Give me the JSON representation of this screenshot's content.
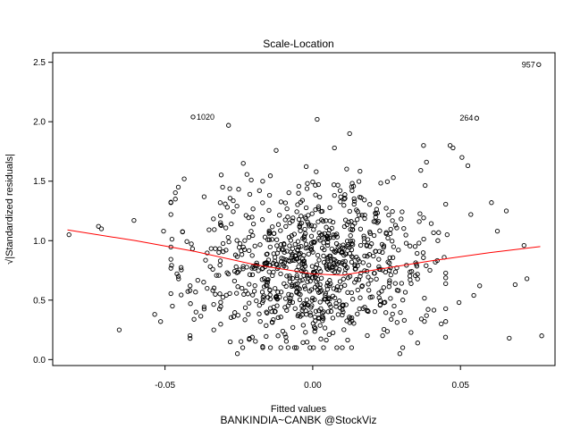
{
  "chart_data": {
    "type": "scatter",
    "title": "Scale-Location",
    "xlabel": "Fitted values",
    "ylabel": "√|Standardized residuals|",
    "caption": "BANKINDIA~CANBK @StockViz",
    "xlim": [
      -0.088,
      0.082
    ],
    "ylim": [
      -0.05,
      2.58
    ],
    "x_ticks": [
      -0.05,
      0.0,
      0.05
    ],
    "x_tick_labels": [
      "-0.05",
      "0.00",
      "0.05"
    ],
    "y_ticks": [
      0.0,
      0.5,
      1.0,
      1.5,
      2.0,
      2.5
    ],
    "y_tick_labels": [
      "0.0",
      "0.5",
      "1.0",
      "1.5",
      "2.0",
      "2.5"
    ],
    "grid": false,
    "legend": "none",
    "point_color": "#000000",
    "smooth_color": "#ff0000",
    "labeled_points": [
      {
        "label": "957",
        "x": 0.0765,
        "y": 2.48
      },
      {
        "label": "1020",
        "x": -0.0405,
        "y": 2.04
      },
      {
        "label": "264",
        "x": 0.0555,
        "y": 2.03
      }
    ],
    "smooth_line": {
      "x": [
        -0.083,
        -0.06,
        -0.04,
        -0.02,
        0.0,
        0.01,
        0.02,
        0.04,
        0.06,
        0.077
      ],
      "y": [
        1.09,
        1.0,
        0.91,
        0.8,
        0.72,
        0.71,
        0.75,
        0.83,
        0.9,
        0.95
      ]
    },
    "outer_points": [
      {
        "x": -0.0825,
        "y": 1.05
      },
      {
        "x": -0.0725,
        "y": 1.12
      },
      {
        "x": -0.0715,
        "y": 1.1
      },
      {
        "x": -0.0655,
        "y": 0.25
      },
      {
        "x": -0.0605,
        "y": 1.17
      },
      {
        "x": -0.0535,
        "y": 0.38
      },
      {
        "x": -0.0515,
        "y": 0.32
      },
      {
        "x": -0.0505,
        "y": 1.08
      },
      {
        "x": -0.0475,
        "y": 0.45
      },
      {
        "x": -0.0465,
        "y": 1.35
      },
      {
        "x": -0.0455,
        "y": 1.45
      },
      {
        "x": -0.0435,
        "y": 1.52
      },
      {
        "x": -0.0415,
        "y": 0.62
      },
      {
        "x": -0.0395,
        "y": 0.4
      },
      {
        "x": -0.0285,
        "y": 1.97
      },
      {
        "x": -0.0255,
        "y": 0.05
      },
      {
        "x": -0.0235,
        "y": 1.65
      },
      {
        "x": 0.0015,
        "y": 2.02
      },
      {
        "x": 0.0125,
        "y": 1.9
      },
      {
        "x": 0.0295,
        "y": 0.05
      },
      {
        "x": 0.0355,
        "y": 0.14
      },
      {
        "x": 0.0375,
        "y": 1.8
      },
      {
        "x": 0.0385,
        "y": 1.66
      },
      {
        "x": 0.0465,
        "y": 1.8
      },
      {
        "x": 0.0475,
        "y": 1.78
      },
      {
        "x": 0.0505,
        "y": 1.7
      },
      {
        "x": 0.0525,
        "y": 1.63
      },
      {
        "x": 0.0535,
        "y": 1.22
      },
      {
        "x": 0.0545,
        "y": 0.54
      },
      {
        "x": 0.0565,
        "y": 0.62
      },
      {
        "x": 0.0605,
        "y": 1.32
      },
      {
        "x": 0.0625,
        "y": 1.08
      },
      {
        "x": 0.0655,
        "y": 1.25
      },
      {
        "x": 0.0665,
        "y": 0.18
      },
      {
        "x": 0.0685,
        "y": 0.63
      },
      {
        "x": 0.0715,
        "y": 0.96
      },
      {
        "x": 0.0725,
        "y": 0.68
      },
      {
        "x": 0.0775,
        "y": 0.2
      },
      {
        "x": 0.0455,
        "y": 1.05
      },
      {
        "x": 0.0495,
        "y": 0.48
      },
      {
        "x": 0.0445,
        "y": 0.86
      },
      {
        "x": -0.0335,
        "y": 0.25
      },
      {
        "x": -0.0305,
        "y": 1.45
      },
      {
        "x": -0.0215,
        "y": 0.17
      },
      {
        "x": 0.0385,
        "y": 0.37
      },
      {
        "x": 0.0415,
        "y": 0.82
      },
      {
        "x": -0.0455,
        "y": 0.7
      },
      {
        "x": 0.0435,
        "y": 0.3
      }
    ],
    "cloud": {
      "n": 900,
      "seed": 957,
      "x_sd": 0.019,
      "x_min": -0.048,
      "x_max": 0.045,
      "y_mean": 0.78,
      "y_sd": 0.34,
      "y_min": 0.1,
      "y_max": 1.78
    }
  }
}
